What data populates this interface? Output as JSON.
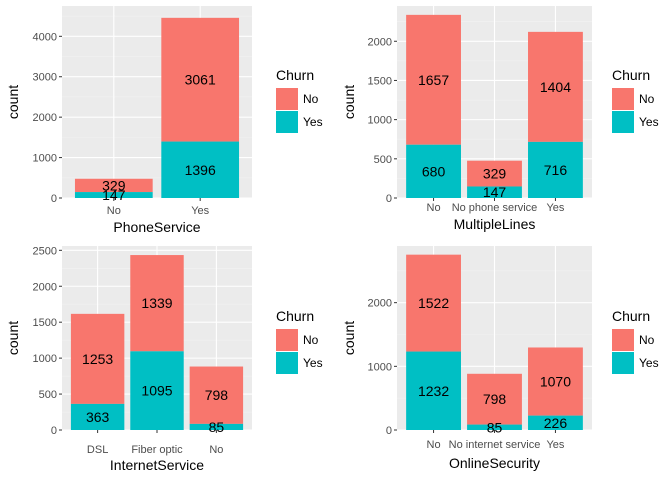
{
  "colors": {
    "No": "#F8766D",
    "Yes": "#00BFC4",
    "panel": "#EBEBEB",
    "grid_major": "#FFFFFF",
    "grid_minor": "#F2F2F2"
  },
  "chart_data": [
    {
      "type": "bar",
      "stacked": true,
      "xlabel": "PhoneService",
      "ylabel": "count",
      "ylim": [
        0,
        4750
      ],
      "yticks": [
        0,
        1000,
        2000,
        3000,
        4000
      ],
      "grid": true,
      "categories": [
        "No",
        "Yes"
      ],
      "series": [
        {
          "name": "Yes",
          "values": [
            147,
            1396
          ]
        },
        {
          "name": "No",
          "values": [
            329,
            3061
          ]
        }
      ],
      "legend": {
        "title": "Churn",
        "entries": [
          "No",
          "Yes"
        ],
        "position": "right"
      }
    },
    {
      "type": "bar",
      "stacked": true,
      "xlabel": "MultipleLines",
      "ylabel": "count",
      "ylim": [
        0,
        2450
      ],
      "yticks": [
        0,
        500,
        1000,
        1500,
        2000
      ],
      "grid": true,
      "categories": [
        "No",
        "No phone service",
        "Yes"
      ],
      "series": [
        {
          "name": "Yes",
          "values": [
            680,
            147,
            716
          ]
        },
        {
          "name": "No",
          "values": [
            1657,
            329,
            1404
          ]
        }
      ],
      "legend": {
        "title": "Churn",
        "entries": [
          "No",
          "Yes"
        ],
        "position": "right"
      }
    },
    {
      "type": "bar",
      "stacked": true,
      "xlabel": "InternetService",
      "ylabel": "count",
      "ylim": [
        0,
        2560
      ],
      "yticks": [
        0,
        500,
        1000,
        1500,
        2000,
        2500
      ],
      "grid": true,
      "categories": [
        "DSL",
        "Fiber optic",
        "No"
      ],
      "series": [
        {
          "name": "Yes",
          "values": [
            363,
            1095,
            85
          ]
        },
        {
          "name": "No",
          "values": [
            1253,
            1339,
            798
          ]
        }
      ],
      "legend": {
        "title": "Churn",
        "entries": [
          "No",
          "Yes"
        ],
        "position": "right"
      }
    },
    {
      "type": "bar",
      "stacked": true,
      "xlabel": "OnlineSecurity",
      "ylabel": "count",
      "ylim": [
        0,
        2890
      ],
      "yticks": [
        0,
        1000,
        2000
      ],
      "grid": true,
      "categories": [
        "No",
        "No internet service",
        "Yes"
      ],
      "series": [
        {
          "name": "Yes",
          "values": [
            1232,
            85,
            226
          ]
        },
        {
          "name": "No",
          "values": [
            1522,
            798,
            1070
          ]
        }
      ],
      "legend": {
        "title": "Churn",
        "entries": [
          "No",
          "Yes"
        ],
        "position": "right"
      }
    }
  ]
}
